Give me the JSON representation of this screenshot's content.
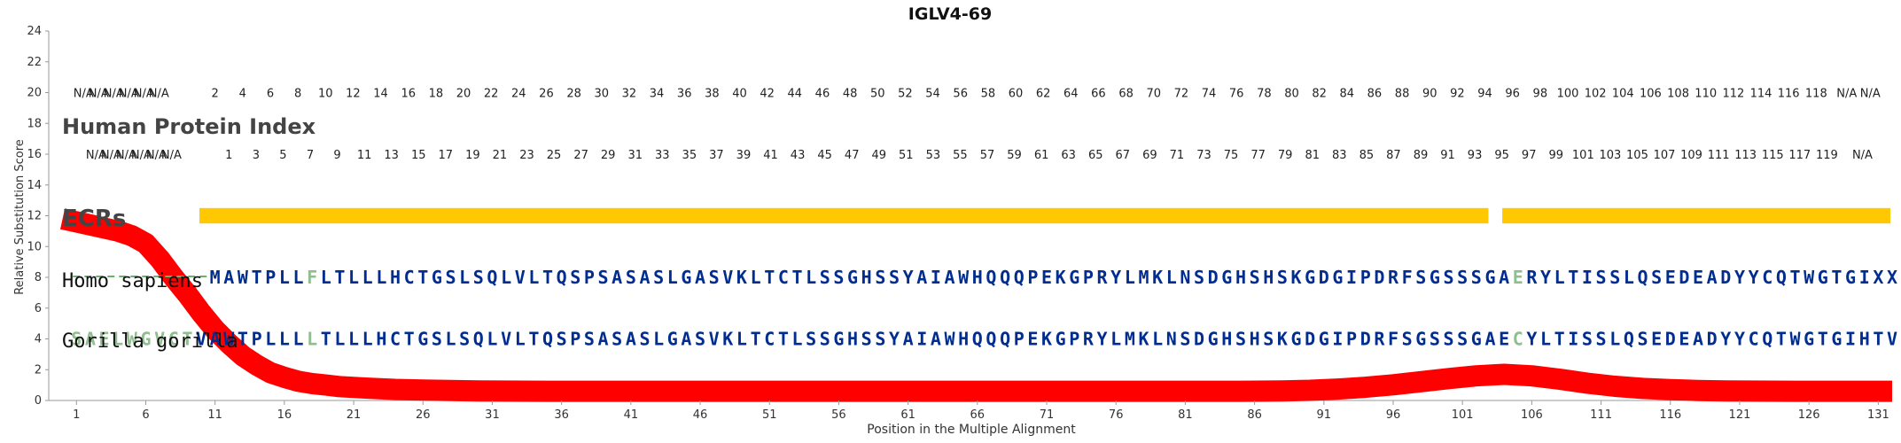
{
  "chart_data": {
    "type": "line",
    "title": "IGLV4-69",
    "xlabel": "Position in the Multiple Alignment",
    "ylabel": "Relative Substitution Score",
    "xlim": [
      -1,
      132
    ],
    "ylim": [
      0,
      24
    ],
    "x_ticks": [
      1,
      6,
      11,
      16,
      21,
      26,
      31,
      36,
      41,
      46,
      51,
      56,
      61,
      66,
      71,
      76,
      81,
      86,
      91,
      96,
      101,
      106,
      111,
      116,
      121,
      126,
      131
    ],
    "y_ticks": [
      0,
      2,
      4,
      6,
      8,
      10,
      12,
      14,
      16,
      18,
      20,
      22,
      24
    ],
    "grid": false,
    "series": [
      {
        "name": "",
        "color": "#ff0000",
        "x": [
          0,
          2,
          4,
          5,
          6,
          7,
          8,
          9,
          10,
          11,
          12,
          13,
          14,
          15,
          16,
          17,
          18,
          19,
          20,
          22,
          24,
          26,
          28,
          30,
          35,
          40,
          50,
          60,
          70,
          80,
          85,
          88,
          90,
          92,
          94,
          96,
          98,
          100,
          102,
          104,
          106,
          108,
          110,
          112,
          114,
          116,
          118,
          120,
          125,
          132
        ],
        "values": [
          11.8,
          11.4,
          11.0,
          10.7,
          10.2,
          9.2,
          8.0,
          6.9,
          5.7,
          4.6,
          3.7,
          2.9,
          2.3,
          1.8,
          1.5,
          1.25,
          1.1,
          1.0,
          0.9,
          0.8,
          0.72,
          0.68,
          0.65,
          0.62,
          0.6,
          0.6,
          0.6,
          0.6,
          0.6,
          0.6,
          0.6,
          0.62,
          0.66,
          0.74,
          0.86,
          1.02,
          1.22,
          1.42,
          1.6,
          1.7,
          1.6,
          1.38,
          1.12,
          0.92,
          0.78,
          0.7,
          0.65,
          0.62,
          0.6,
          0.6
        ]
      }
    ],
    "index_top": [
      "N/A",
      "N/A",
      "N/A",
      "N/A",
      "N/A",
      "N/A",
      "2",
      "4",
      "6",
      "8",
      "10",
      "12",
      "14",
      "16",
      "18",
      "20",
      "22",
      "24",
      "26",
      "28",
      "30",
      "32",
      "34",
      "36",
      "38",
      "40",
      "42",
      "44",
      "46",
      "48",
      "50",
      "52",
      "54",
      "56",
      "58",
      "60",
      "62",
      "64",
      "66",
      "68",
      "70",
      "72",
      "74",
      "76",
      "78",
      "80",
      "82",
      "84",
      "86",
      "88",
      "90",
      "92",
      "94",
      "96",
      "98",
      "100",
      "102",
      "104",
      "106",
      "108",
      "110",
      "112",
      "114",
      "116",
      "118",
      "N/A",
      "N/A"
    ],
    "index_bottom": [
      "N/A",
      "N/A",
      "N/A",
      "N/A",
      "N/A",
      "N/A",
      "1",
      "3",
      "5",
      "7",
      "9",
      "11",
      "13",
      "15",
      "17",
      "19",
      "21",
      "23",
      "25",
      "27",
      "29",
      "31",
      "33",
      "35",
      "37",
      "39",
      "41",
      "43",
      "45",
      "47",
      "49",
      "51",
      "53",
      "55",
      "57",
      "59",
      "61",
      "63",
      "65",
      "67",
      "69",
      "71",
      "73",
      "75",
      "77",
      "79",
      "81",
      "83",
      "85",
      "87",
      "89",
      "91",
      "93",
      "95",
      "97",
      "99",
      "101",
      "103",
      "105",
      "107",
      "109",
      "111",
      "113",
      "115",
      "117",
      "119",
      "N/A"
    ],
    "ecr_bars": [
      [
        10,
        103
      ],
      [
        104,
        132
      ]
    ]
  },
  "labels": {
    "index": "Human Protein Index",
    "ecrs": "ECRs",
    "species1": "Homo sapiens",
    "species2": "Gorilla gorilla"
  },
  "colors": {
    "ecr_bar": "#ffc800",
    "curve": "#ff0000",
    "seq_main": "#002d8f",
    "seq_diff": "#8fbf8f",
    "gap": "#6ab36a"
  },
  "sequences": {
    "homo_gap": "----------",
    "homo_residues": "MAWTPLLFLTLLLHCTGSLSQLVLTQSPSASASLGASVKLTCTLSSGHSSYAIAWHQQQPEKGPRYLMKLNSDGHSHSKGDGIPDRFSGSSSGAERYLTISSLQSEDEADYYCQTWGTGIXXX",
    "gorilla_residues": "SAELWGVCTVAWTPLLLLTLLLHCTGSLSQLVLTQSPSASASLGASVKLTCTLSSGHSSYAIAWHQQQPEKGPRYLMKLNSDGHSHSKGDGIPDRFSGSSSGAECYLTISSLQSEDEADYYCQTWGTGIHTV",
    "homo_diff_positions": [
      18,
      105
    ],
    "gorilla_diff_positions": [
      1,
      2,
      3,
      4,
      5,
      6,
      7,
      8,
      9,
      18,
      105
    ]
  }
}
